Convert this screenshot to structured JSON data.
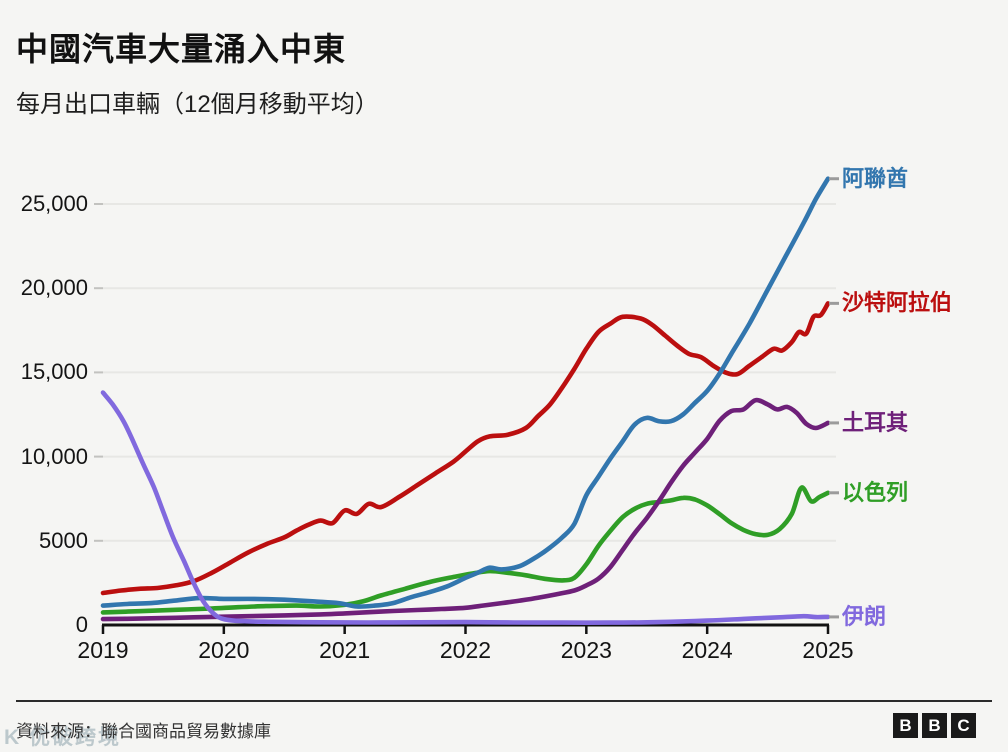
{
  "header": {
    "title": "中國汽車大量涌入中東",
    "subtitle": "每月出口車輛（12個月移動平均）"
  },
  "chart_data": {
    "type": "line",
    "title": "中國汽車大量涌入中東",
    "subtitle": "每月出口車輛（12個月移動平均）",
    "xlabel": "",
    "ylabel": "",
    "xlim": [
      2019,
      2025
    ],
    "ylim": [
      0,
      26800
    ],
    "grid": "horizontal-light-gridlines-every-5000",
    "legend_position": "direct-labels-at-right-line-ends",
    "x_ticks": [
      {
        "label": "2019",
        "value": 2019
      },
      {
        "label": "2020",
        "value": 2020
      },
      {
        "label": "2021",
        "value": 2021
      },
      {
        "label": "2022",
        "value": 2022
      },
      {
        "label": "2023",
        "value": 2023
      },
      {
        "label": "2024",
        "value": 2024
      },
      {
        "label": "2025",
        "value": 2025
      }
    ],
    "y_ticks": [
      {
        "label": "0",
        "value": 0
      },
      {
        "label": "5000",
        "value": 5000
      },
      {
        "label": "10,000",
        "value": 10000
      },
      {
        "label": "15,000",
        "value": 15000
      },
      {
        "label": "20,000",
        "value": 20000
      },
      {
        "label": "25,000",
        "value": 25000
      }
    ],
    "series": [
      {
        "id": "uae",
        "name": "阿聯酋",
        "color": "#3276ae",
        "points": [
          [
            2019.0,
            1150
          ],
          [
            2019.2,
            1250
          ],
          [
            2019.4,
            1300
          ],
          [
            2019.6,
            1450
          ],
          [
            2019.8,
            1600
          ],
          [
            2020.0,
            1550
          ],
          [
            2020.25,
            1550
          ],
          [
            2020.5,
            1500
          ],
          [
            2020.75,
            1400
          ],
          [
            2020.95,
            1300
          ],
          [
            2021.1,
            1100
          ],
          [
            2021.25,
            1150
          ],
          [
            2021.4,
            1300
          ],
          [
            2021.55,
            1650
          ],
          [
            2021.7,
            1950
          ],
          [
            2021.85,
            2300
          ],
          [
            2022.0,
            2800
          ],
          [
            2022.1,
            3100
          ],
          [
            2022.2,
            3400
          ],
          [
            2022.3,
            3300
          ],
          [
            2022.45,
            3500
          ],
          [
            2022.6,
            4100
          ],
          [
            2022.7,
            4600
          ],
          [
            2022.8,
            5200
          ],
          [
            2022.9,
            6000
          ],
          [
            2023.0,
            7700
          ],
          [
            2023.1,
            8800
          ],
          [
            2023.2,
            9900
          ],
          [
            2023.3,
            10900
          ],
          [
            2023.4,
            11900
          ],
          [
            2023.5,
            12300
          ],
          [
            2023.6,
            12100
          ],
          [
            2023.7,
            12100
          ],
          [
            2023.8,
            12500
          ],
          [
            2023.9,
            13200
          ],
          [
            2024.0,
            13900
          ],
          [
            2024.1,
            14900
          ],
          [
            2024.2,
            16100
          ],
          [
            2024.35,
            17900
          ],
          [
            2024.5,
            19900
          ],
          [
            2024.65,
            21900
          ],
          [
            2024.8,
            23900
          ],
          [
            2024.9,
            25300
          ],
          [
            2025.0,
            26500
          ]
        ]
      },
      {
        "id": "saudi",
        "name": "沙特阿拉伯",
        "color": "#bb0f0f",
        "points": [
          [
            2019.0,
            1900
          ],
          [
            2019.15,
            2050
          ],
          [
            2019.3,
            2150
          ],
          [
            2019.45,
            2200
          ],
          [
            2019.6,
            2350
          ],
          [
            2019.75,
            2600
          ],
          [
            2019.9,
            3100
          ],
          [
            2020.05,
            3700
          ],
          [
            2020.2,
            4300
          ],
          [
            2020.35,
            4800
          ],
          [
            2020.5,
            5200
          ],
          [
            2020.6,
            5600
          ],
          [
            2020.7,
            5950
          ],
          [
            2020.8,
            6200
          ],
          [
            2020.9,
            6050
          ],
          [
            2021.0,
            6800
          ],
          [
            2021.1,
            6600
          ],
          [
            2021.2,
            7200
          ],
          [
            2021.3,
            7000
          ],
          [
            2021.45,
            7600
          ],
          [
            2021.6,
            8300
          ],
          [
            2021.75,
            9000
          ],
          [
            2021.9,
            9700
          ],
          [
            2022.0,
            10300
          ],
          [
            2022.1,
            10900
          ],
          [
            2022.2,
            11200
          ],
          [
            2022.35,
            11300
          ],
          [
            2022.5,
            11700
          ],
          [
            2022.6,
            12400
          ],
          [
            2022.7,
            13100
          ],
          [
            2022.8,
            14100
          ],
          [
            2022.9,
            15200
          ],
          [
            2023.0,
            16400
          ],
          [
            2023.1,
            17400
          ],
          [
            2023.2,
            17900
          ],
          [
            2023.3,
            18300
          ],
          [
            2023.45,
            18200
          ],
          [
            2023.55,
            17800
          ],
          [
            2023.65,
            17200
          ],
          [
            2023.75,
            16600
          ],
          [
            2023.85,
            16100
          ],
          [
            2023.95,
            15900
          ],
          [
            2024.05,
            15400
          ],
          [
            2024.15,
            15000
          ],
          [
            2024.25,
            14900
          ],
          [
            2024.35,
            15400
          ],
          [
            2024.45,
            15900
          ],
          [
            2024.55,
            16400
          ],
          [
            2024.62,
            16300
          ],
          [
            2024.7,
            16800
          ],
          [
            2024.76,
            17400
          ],
          [
            2024.82,
            17300
          ],
          [
            2024.88,
            18300
          ],
          [
            2024.94,
            18400
          ],
          [
            2025.0,
            19100
          ]
        ]
      },
      {
        "id": "turkey",
        "name": "土耳其",
        "color": "#6e2079",
        "points": [
          [
            2019.0,
            350
          ],
          [
            2019.3,
            380
          ],
          [
            2019.6,
            430
          ],
          [
            2019.9,
            480
          ],
          [
            2020.2,
            520
          ],
          [
            2020.5,
            570
          ],
          [
            2020.8,
            630
          ],
          [
            2021.0,
            690
          ],
          [
            2021.2,
            760
          ],
          [
            2021.4,
            830
          ],
          [
            2021.6,
            890
          ],
          [
            2021.8,
            950
          ],
          [
            2022.0,
            1020
          ],
          [
            2022.15,
            1160
          ],
          [
            2022.3,
            1300
          ],
          [
            2022.45,
            1450
          ],
          [
            2022.6,
            1620
          ],
          [
            2022.75,
            1820
          ],
          [
            2022.9,
            2050
          ],
          [
            2023.0,
            2350
          ],
          [
            2023.1,
            2750
          ],
          [
            2023.2,
            3450
          ],
          [
            2023.3,
            4450
          ],
          [
            2023.4,
            5450
          ],
          [
            2023.5,
            6350
          ],
          [
            2023.6,
            7350
          ],
          [
            2023.7,
            8450
          ],
          [
            2023.8,
            9450
          ],
          [
            2023.9,
            10250
          ],
          [
            2024.0,
            11050
          ],
          [
            2024.1,
            12100
          ],
          [
            2024.2,
            12700
          ],
          [
            2024.3,
            12800
          ],
          [
            2024.4,
            13350
          ],
          [
            2024.5,
            13100
          ],
          [
            2024.58,
            12800
          ],
          [
            2024.66,
            12950
          ],
          [
            2024.74,
            12600
          ],
          [
            2024.82,
            11950
          ],
          [
            2024.9,
            11700
          ],
          [
            2025.0,
            12000
          ]
        ]
      },
      {
        "id": "israel",
        "name": "以色列",
        "color": "#2f9e26",
        "points": [
          [
            2019.0,
            750
          ],
          [
            2019.3,
            820
          ],
          [
            2019.6,
            900
          ],
          [
            2019.9,
            980
          ],
          [
            2020.1,
            1050
          ],
          [
            2020.35,
            1120
          ],
          [
            2020.6,
            1150
          ],
          [
            2020.8,
            1100
          ],
          [
            2021.0,
            1200
          ],
          [
            2021.15,
            1400
          ],
          [
            2021.3,
            1750
          ],
          [
            2021.5,
            2150
          ],
          [
            2021.7,
            2550
          ],
          [
            2021.9,
            2850
          ],
          [
            2022.05,
            3050
          ],
          [
            2022.2,
            3200
          ],
          [
            2022.35,
            3100
          ],
          [
            2022.5,
            2950
          ],
          [
            2022.65,
            2750
          ],
          [
            2022.8,
            2650
          ],
          [
            2022.9,
            2800
          ],
          [
            2023.0,
            3600
          ],
          [
            2023.1,
            4700
          ],
          [
            2023.2,
            5600
          ],
          [
            2023.3,
            6400
          ],
          [
            2023.4,
            6900
          ],
          [
            2023.5,
            7200
          ],
          [
            2023.6,
            7300
          ],
          [
            2023.7,
            7400
          ],
          [
            2023.8,
            7550
          ],
          [
            2023.9,
            7450
          ],
          [
            2024.0,
            7100
          ],
          [
            2024.1,
            6600
          ],
          [
            2024.2,
            6050
          ],
          [
            2024.3,
            5650
          ],
          [
            2024.4,
            5400
          ],
          [
            2024.5,
            5350
          ],
          [
            2024.6,
            5700
          ],
          [
            2024.7,
            6600
          ],
          [
            2024.78,
            8150
          ],
          [
            2024.86,
            7350
          ],
          [
            2024.93,
            7600
          ],
          [
            2025.0,
            7850
          ]
        ]
      },
      {
        "id": "iran",
        "name": "伊朗",
        "color": "#8169de",
        "points": [
          [
            2019.0,
            13800
          ],
          [
            2019.08,
            13100
          ],
          [
            2019.17,
            12100
          ],
          [
            2019.25,
            10900
          ],
          [
            2019.33,
            9600
          ],
          [
            2019.42,
            8200
          ],
          [
            2019.5,
            6700
          ],
          [
            2019.58,
            5200
          ],
          [
            2019.67,
            3800
          ],
          [
            2019.75,
            2500
          ],
          [
            2019.83,
            1400
          ],
          [
            2019.92,
            650
          ],
          [
            2020.0,
            350
          ],
          [
            2020.15,
            230
          ],
          [
            2020.4,
            190
          ],
          [
            2020.8,
            160
          ],
          [
            2021.2,
            150
          ],
          [
            2021.6,
            160
          ],
          [
            2022.0,
            170
          ],
          [
            2022.4,
            150
          ],
          [
            2022.8,
            140
          ],
          [
            2023.2,
            140
          ],
          [
            2023.6,
            170
          ],
          [
            2024.0,
            260
          ],
          [
            2024.3,
            360
          ],
          [
            2024.6,
            460
          ],
          [
            2024.8,
            520
          ],
          [
            2024.9,
            470
          ],
          [
            2025.0,
            480
          ]
        ]
      }
    ]
  },
  "footer": {
    "source": "資料來源：聯合國商品貿易數據庫",
    "watermark": "K 优破跨境",
    "bbc": [
      "B",
      "B",
      "C"
    ]
  }
}
